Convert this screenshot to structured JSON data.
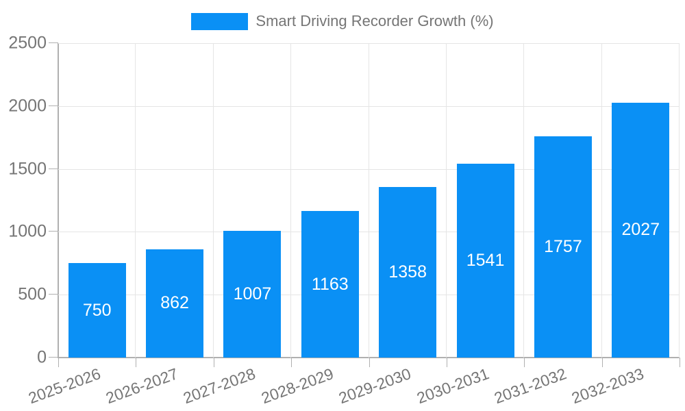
{
  "colors": {
    "bar": "#0a90f5",
    "grid": "#e5e5e5",
    "axis": "#b0b0b0",
    "text": "#757575",
    "value_label": "#ffffff",
    "background": "#ffffff"
  },
  "legend": {
    "label": "Smart Driving Recorder Growth (%)"
  },
  "chart_data": {
    "type": "bar",
    "title": "Smart Driving Recorder Growth (%)",
    "legend_label": "Smart Driving Recorder Growth (%)",
    "categories": [
      "2025-2026",
      "2026-2027",
      "2027-2028",
      "2028-2029",
      "2029-2030",
      "2030-2031",
      "2031-2032",
      "2032-2033"
    ],
    "values": [
      750,
      862,
      1007,
      1163,
      1358,
      1541,
      1757,
      2027
    ],
    "xlabel": "",
    "ylabel": "",
    "ylim": [
      0,
      2500
    ],
    "yticks": [
      0,
      500,
      1000,
      1500,
      2000,
      2500
    ],
    "grid": true,
    "legend_position": "top-center",
    "bar_value_labels": "inside-center",
    "x_label_rotation_deg": -20
  }
}
